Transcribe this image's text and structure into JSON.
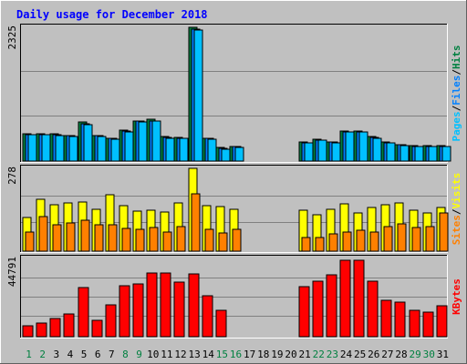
{
  "title": "Daily usage for December 2018",
  "chart_data": [
    {
      "type": "bar",
      "name": "hits-files-pages",
      "categories": [
        "1",
        "2",
        "3",
        "4",
        "5",
        "6",
        "7",
        "8",
        "9",
        "10",
        "11",
        "12",
        "13",
        "14",
        "15",
        "16",
        "17",
        "18",
        "19",
        "20",
        "21",
        "22",
        "23",
        "24",
        "25",
        "26",
        "27",
        "28",
        "29",
        "30",
        "31"
      ],
      "y_max_label": "2325",
      "ylim": [
        0,
        2325
      ],
      "series": [
        {
          "name": "Hits",
          "color": "#008040",
          "values": [
            480,
            470,
            470,
            450,
            680,
            450,
            400,
            530,
            700,
            720,
            420,
            410,
            2325,
            400,
            230,
            260,
            0,
            0,
            0,
            0,
            330,
            380,
            340,
            520,
            520,
            420,
            330,
            290,
            270,
            270,
            270
          ]
        },
        {
          "name": "Files",
          "color": "#0080ff",
          "values": [
            460,
            460,
            460,
            440,
            650,
            440,
            390,
            520,
            690,
            700,
            410,
            400,
            2300,
            390,
            220,
            250,
            0,
            0,
            0,
            0,
            320,
            370,
            330,
            510,
            510,
            410,
            320,
            280,
            260,
            260,
            260
          ]
        },
        {
          "name": "Pages",
          "color": "#00c0ff",
          "values": [
            460,
            460,
            450,
            430,
            640,
            430,
            380,
            500,
            680,
            690,
            400,
            390,
            2280,
            380,
            210,
            240,
            0,
            0,
            0,
            0,
            310,
            360,
            320,
            500,
            500,
            400,
            310,
            270,
            250,
            250,
            250
          ]
        }
      ],
      "legend_text": [
        "Pages",
        "/",
        "Files",
        "/",
        "Hits"
      ]
    },
    {
      "type": "bar",
      "name": "visits-sites",
      "categories": [
        "1",
        "2",
        "3",
        "4",
        "5",
        "6",
        "7",
        "8",
        "9",
        "10",
        "11",
        "12",
        "13",
        "14",
        "15",
        "16",
        "17",
        "18",
        "19",
        "20",
        "21",
        "22",
        "23",
        "24",
        "25",
        "26",
        "27",
        "28",
        "29",
        "30",
        "31"
      ],
      "y_max_label": "278",
      "ylim": [
        0,
        278
      ],
      "series": [
        {
          "name": "Visits",
          "color": "#ffff00",
          "values": [
            113,
            174,
            157,
            161,
            166,
            142,
            189,
            152,
            135,
            138,
            131,
            162,
            278,
            152,
            151,
            142,
            0,
            0,
            0,
            0,
            136,
            123,
            141,
            158,
            129,
            146,
            155,
            161,
            136,
            127,
            148
          ]
        },
        {
          "name": "Sites",
          "color": "#ff8000",
          "values": [
            64,
            117,
            89,
            96,
            104,
            88,
            89,
            76,
            72,
            78,
            64,
            84,
            191,
            72,
            60,
            74,
            0,
            0,
            0,
            0,
            47,
            46,
            59,
            64,
            71,
            65,
            84,
            92,
            79,
            84,
            129
          ]
        }
      ],
      "legend_text": [
        "Sites",
        "/",
        "Visits"
      ]
    },
    {
      "type": "bar",
      "name": "kbytes",
      "categories": [
        "1",
        "2",
        "3",
        "4",
        "5",
        "6",
        "7",
        "8",
        "9",
        "10",
        "11",
        "12",
        "13",
        "14",
        "15",
        "16",
        "17",
        "18",
        "19",
        "20",
        "21",
        "22",
        "23",
        "24",
        "25",
        "26",
        "27",
        "28",
        "29",
        "30",
        "31"
      ],
      "y_max_label": "44791",
      "ylim": [
        0,
        44791
      ],
      "series": [
        {
          "name": "KBytes",
          "color": "#ff0000",
          "values": [
            6000,
            7700,
            10200,
            12900,
            28000,
            9600,
            18000,
            29000,
            30400,
            36300,
            36300,
            31000,
            36000,
            23600,
            15000,
            0,
            0,
            0,
            0,
            0,
            28600,
            32000,
            35400,
            43500,
            43500,
            32000,
            21000,
            20000,
            15000,
            14000,
            17700
          ]
        }
      ],
      "legend_text": [
        "KBytes"
      ]
    }
  ],
  "x_axis": {
    "labels": [
      "1",
      "2",
      "3",
      "4",
      "5",
      "6",
      "7",
      "8",
      "9",
      "10",
      "11",
      "12",
      "13",
      "14",
      "15",
      "16",
      "17",
      "18",
      "19",
      "20",
      "21",
      "22",
      "23",
      "24",
      "25",
      "26",
      "27",
      "28",
      "29",
      "30",
      "31"
    ],
    "weekend_days": [
      1,
      2,
      8,
      9,
      15,
      16,
      22,
      23,
      29,
      30
    ],
    "weekday_color": "#000000",
    "weekend_color": "#008040"
  }
}
